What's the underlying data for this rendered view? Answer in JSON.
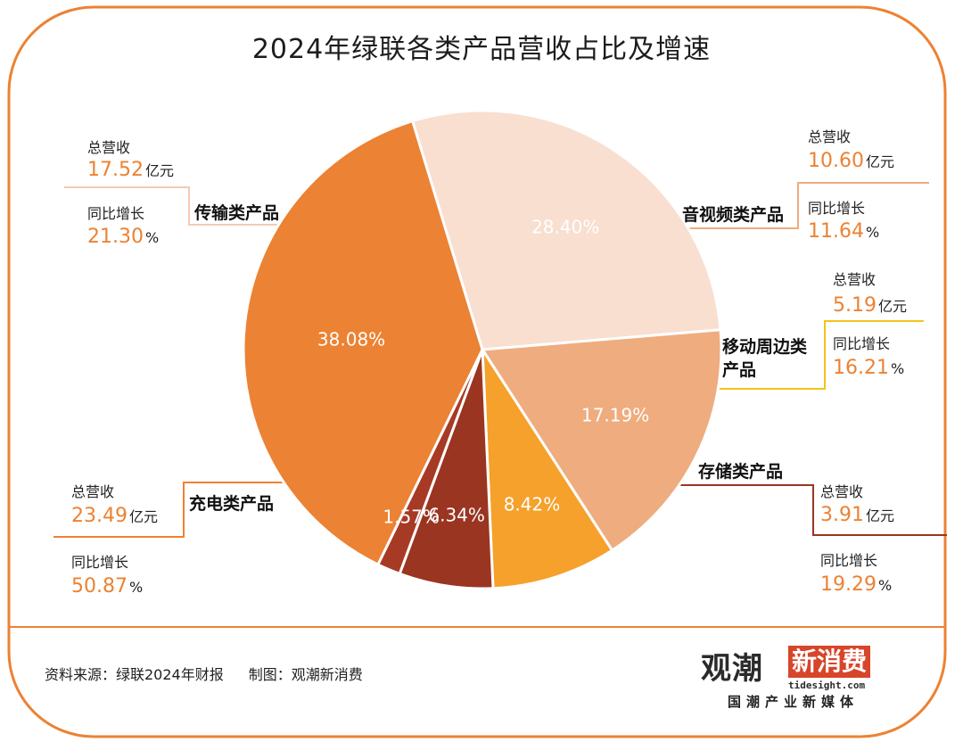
{
  "chart_data": {
    "type": "pie",
    "title": "2024年绿联各类产品营收占比及增速",
    "slices": [
      {
        "label": "传输类产品",
        "percent_label": "28.40%",
        "value": 28.4,
        "color": "#f8dfd0",
        "revenue_label": "总营收",
        "revenue": "17.52",
        "revenue_unit": "亿元",
        "growth_label": "同比增长",
        "growth": "21.30",
        "growth_unit": "%"
      },
      {
        "label": "音视频类产品",
        "percent_label": "17.19%",
        "value": 17.19,
        "color": "#efac7f",
        "revenue_label": "总营收",
        "revenue": "10.60",
        "revenue_unit": "亿元",
        "growth_label": "同比增长",
        "growth": "11.64",
        "growth_unit": "%"
      },
      {
        "label": "移动周边类产品",
        "percent_label": "8.42%",
        "value": 8.42,
        "color": "#f5a12b",
        "revenue_label": "总营收",
        "revenue": "5.19",
        "revenue_unit": "亿元",
        "growth_label": "同比增长",
        "growth": "16.21",
        "growth_unit": "%"
      },
      {
        "label": "存储类产品",
        "percent_label": "6.34%",
        "value": 6.34,
        "color": "#9a3521",
        "revenue_label": "总营收",
        "revenue": "3.91",
        "revenue_unit": "亿元",
        "growth_label": "同比增长",
        "growth": "19.29",
        "growth_unit": "%"
      },
      {
        "label": "",
        "percent_label": "1.57%",
        "value": 1.57,
        "color": "#a73a25"
      },
      {
        "label": "充电类产品",
        "percent_label": "38.08%",
        "value": 38.08,
        "color": "#ec8233",
        "revenue_label": "总营收",
        "revenue": "23.49",
        "revenue_unit": "亿元",
        "growth_label": "同比增长",
        "growth": "50.87",
        "growth_unit": "%"
      }
    ]
  },
  "footer": {
    "source": "资料来源：绿联2024年财报",
    "credit": "制图：观潮新消费"
  },
  "brand": {
    "name_part1": "观潮",
    "name_part2": "新消费",
    "url": "tidesight.com",
    "tagline": "国潮产业新媒体"
  },
  "colors": {
    "frame": "#ec8233",
    "accent_text": "#ec8233"
  }
}
